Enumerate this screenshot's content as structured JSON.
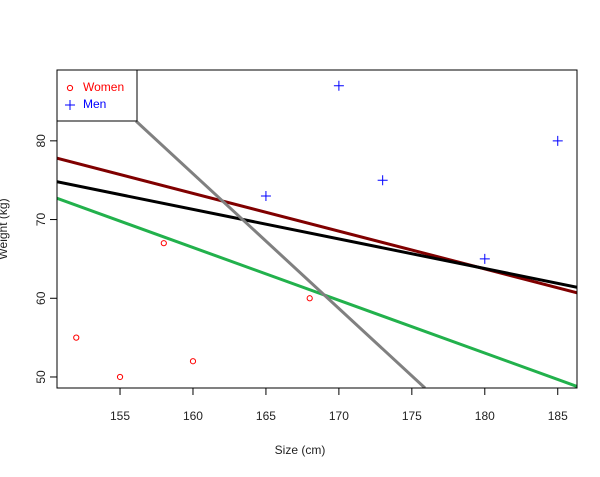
{
  "chart_data": {
    "type": "scatter",
    "xlabel": "Size (cm)",
    "ylabel": "Weight (kg)",
    "xlim": [
      150.68,
      186.32
    ],
    "ylim": [
      48.6,
      89
    ],
    "xticks": [
      155,
      160,
      165,
      170,
      175,
      180,
      185
    ],
    "yticks": [
      50,
      60,
      70,
      80
    ],
    "legend": "topleft",
    "series": [
      {
        "name": "Women",
        "color": "#ff0000",
        "marker": "circle",
        "x": [
          152,
          155,
          158,
          160,
          168
        ],
        "values": [
          55,
          50,
          67,
          52,
          60
        ]
      },
      {
        "name": "Men",
        "color": "#0000ff",
        "marker": "plus",
        "x": [
          165,
          170,
          173,
          180,
          185
        ],
        "values": [
          73,
          87,
          75,
          65,
          80
        ]
      }
    ],
    "lines": [
      {
        "color": "#800000",
        "x": [
          150.68,
          186.32
        ],
        "values": [
          77.8,
          60.7
        ]
      },
      {
        "color": "#000000",
        "x": [
          150.68,
          186.32
        ],
        "values": [
          74.8,
          61.4
        ]
      },
      {
        "color": "#22b14c",
        "x": [
          150.68,
          186.32
        ],
        "values": [
          72.7,
          48.8
        ]
      },
      {
        "color": "#808080",
        "x": [
          156.1,
          175.9
        ],
        "values": [
          82.5,
          48.6
        ]
      }
    ]
  }
}
